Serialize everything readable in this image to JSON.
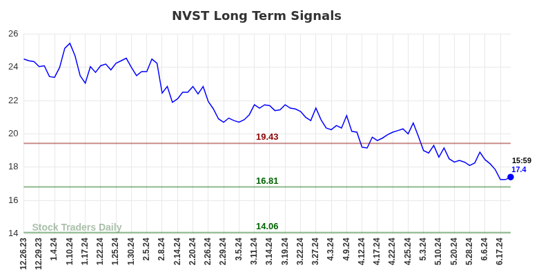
{
  "chart_data": {
    "type": "line",
    "title": "NVST Long Term Signals",
    "categories": [
      "12.26.23",
      null,
      null,
      "12.29.23",
      null,
      null,
      "1.4.24",
      null,
      null,
      "1.10.24",
      null,
      null,
      "1.17.24",
      null,
      null,
      "1.22.24",
      null,
      null,
      "1.25.24",
      null,
      null,
      "1.30.24",
      null,
      null,
      "2.5.24",
      null,
      null,
      "2.8.24",
      null,
      null,
      "2.14.24",
      null,
      null,
      "2.20.24",
      null,
      null,
      "2.26.24",
      null,
      null,
      "2.29.24",
      null,
      null,
      "3.5.24",
      null,
      null,
      "3.11.24",
      null,
      null,
      "3.14.24",
      null,
      null,
      "3.19.24",
      null,
      null,
      "3.22.24",
      null,
      null,
      "3.27.24",
      null,
      null,
      "4.3.24",
      null,
      null,
      "4.9.24",
      null,
      null,
      "4.12.24",
      null,
      null,
      "4.17.24",
      null,
      null,
      "4.22.24",
      null,
      null,
      "4.25.24",
      null,
      null,
      "5.3.24",
      null,
      null,
      "5.10.24",
      null,
      null,
      "5.20.24",
      null,
      null,
      "5.28.24",
      null,
      null,
      "6.6.24",
      null,
      null,
      "6.17.24",
      null,
      null
    ],
    "values": [
      24.5,
      24.4,
      24.35,
      24.05,
      24.1,
      23.45,
      23.4,
      24.0,
      25.15,
      25.45,
      24.7,
      23.5,
      23.05,
      24.05,
      23.7,
      24.1,
      24.2,
      23.85,
      24.25,
      24.4,
      24.55,
      24.0,
      23.5,
      23.75,
      23.75,
      24.5,
      24.25,
      22.45,
      22.85,
      21.9,
      22.1,
      22.5,
      22.5,
      22.85,
      22.4,
      22.85,
      21.95,
      21.5,
      20.9,
      20.7,
      20.95,
      20.8,
      20.7,
      20.85,
      21.15,
      21.75,
      21.55,
      21.75,
      21.7,
      21.4,
      21.45,
      21.75,
      21.55,
      21.5,
      21.35,
      21.0,
      20.8,
      21.55,
      20.85,
      20.35,
      20.25,
      20.5,
      20.35,
      21.1,
      20.15,
      20.1,
      19.2,
      19.15,
      19.8,
      19.6,
      19.75,
      19.95,
      20.1,
      20.2,
      20.3,
      20.0,
      20.65,
      19.85,
      19.0,
      18.85,
      19.3,
      18.6,
      19.15,
      18.5,
      18.3,
      18.4,
      18.3,
      18.1,
      18.25,
      18.9,
      18.45,
      18.2,
      17.85,
      17.25,
      17.25,
      17.4
    ],
    "color": "#0000ff",
    "ylim": [
      14,
      26
    ],
    "yticks": [
      14,
      16,
      18,
      20,
      22,
      24,
      26
    ],
    "grid": true,
    "annotations": {
      "levels": [
        {
          "value": 19.43,
          "label": "19.43",
          "color": "#8b0000"
        },
        {
          "value": 16.81,
          "label": "16.81",
          "color": "#006400"
        },
        {
          "value": 14.06,
          "label": "14.06",
          "color": "#006400"
        }
      ],
      "last_time": "15:59",
      "last_value_label": "17.4",
      "watermark": "Stock Traders Daily"
    }
  }
}
